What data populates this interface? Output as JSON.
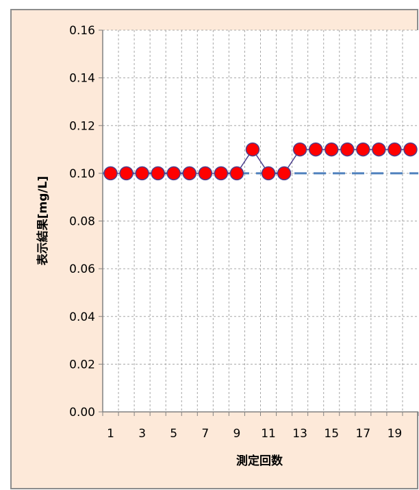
{
  "chart_data": {
    "type": "line",
    "title": "",
    "xlabel": "測定回数",
    "ylabel": "表示結果[mg/L]",
    "x": [
      1,
      2,
      3,
      4,
      5,
      6,
      7,
      8,
      9,
      10,
      11,
      12,
      13,
      14,
      15,
      16,
      17,
      18,
      19,
      20
    ],
    "x_tick_labels": [
      "1",
      "3",
      "5",
      "7",
      "9",
      "11",
      "13",
      "15",
      "17",
      "19"
    ],
    "y_tick_labels": [
      "0.00",
      "0.02",
      "0.04",
      "0.06",
      "0.08",
      "0.10",
      "0.12",
      "0.14",
      "0.16"
    ],
    "ylim": [
      0,
      0.16
    ],
    "grid": true,
    "series": [
      {
        "values": [
          0.1,
          0.1,
          0.1,
          0.1,
          0.1,
          0.1,
          0.1,
          0.1,
          0.1,
          0.11,
          0.1,
          0.1,
          0.11,
          0.11,
          0.11,
          0.11,
          0.11,
          0.11,
          0.11,
          0.11
        ],
        "marker_color": "#ff0000",
        "line_color": "#4b3f8c"
      }
    ],
    "reference_line": {
      "value": 0.1,
      "style": "dashed",
      "color": "#4f81bd"
    },
    "colors": {
      "background": "#fde9d9",
      "plot_area": "#ffffff",
      "grid": "#a6a6a6"
    }
  }
}
